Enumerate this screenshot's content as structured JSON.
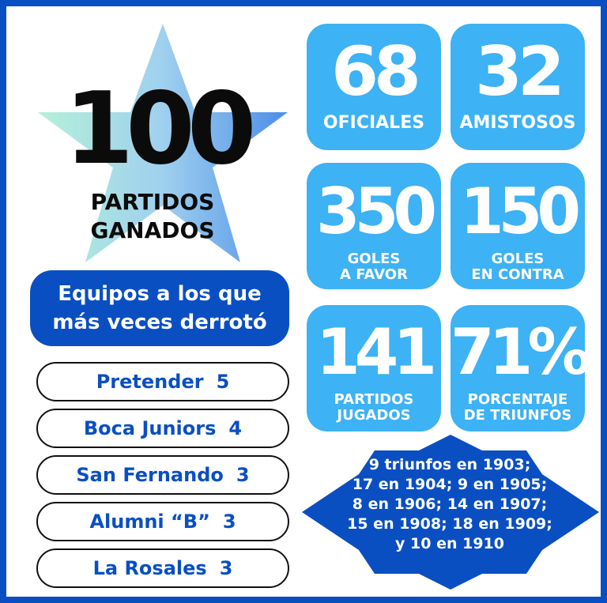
{
  "colors": {
    "primary_blue": "#0a4fc2",
    "tile_blue": "#3db2f4",
    "star_gradient": [
      "#b5f0d8",
      "#9fd0ef",
      "#4c8ee8"
    ],
    "text_dark": "#0b0b0b"
  },
  "icons": {
    "star": "star-icon"
  },
  "headline": {
    "number": "100",
    "caption_line1": "PARTIDOS",
    "caption_line2": "GANADOS"
  },
  "stats": [
    {
      "value": "68",
      "label_line1": "OFICIALES",
      "label_line2": ""
    },
    {
      "value": "32",
      "label_line1": "AMISTOSOS",
      "label_line2": ""
    },
    {
      "value": "350",
      "label_line1": "GOLES",
      "label_line2": "A FAVOR"
    },
    {
      "value": "150",
      "label_line1": "GOLES",
      "label_line2": "EN CONTRA"
    },
    {
      "value": "141",
      "label_line1": "PARTIDOS",
      "label_line2": "JUGADOS"
    },
    {
      "value": "71%",
      "label_line1": "PORCENTAJE",
      "label_line2": "DE TRIUNFOS"
    }
  ],
  "teams": {
    "header_line1": "Equipos a los que",
    "header_line2": "más veces derrotó",
    "items": [
      {
        "name": "Pretender",
        "count": "5"
      },
      {
        "name": "Boca Juniors",
        "count": "4"
      },
      {
        "name": "San Fernando",
        "count": "3"
      },
      {
        "name": "Alumni “B”",
        "count": "3"
      },
      {
        "name": "La Rosales",
        "count": "3"
      }
    ]
  },
  "wins_by_year": {
    "lines": [
      "9 triunfos en 1903;",
      "17 en 1904; 9 en 1905;",
      "8 en 1906; 14 en 1907;",
      "15 en 1908; 18 en 1909;",
      "y 10 en 1910"
    ]
  }
}
